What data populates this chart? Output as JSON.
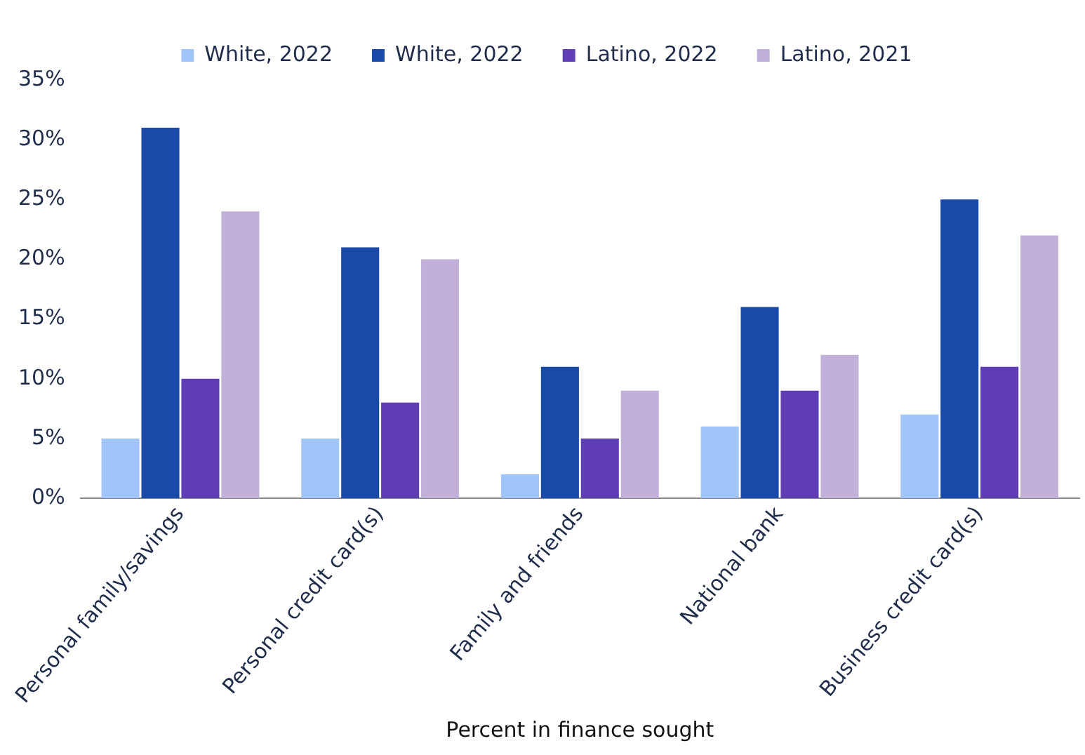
{
  "chart_data": {
    "type": "bar",
    "xlabel": "Percent in finance sought",
    "categories": [
      "Personal family/savings",
      "Personal credit card(s)",
      "Family and friends",
      "National bank",
      "Business credit card(s)"
    ],
    "series": [
      {
        "name": "White, 2022",
        "color": "#a1c4f9",
        "values": [
          5,
          5,
          2,
          6,
          7
        ]
      },
      {
        "name": "White, 2022",
        "color": "#1a4aa8",
        "values": [
          31,
          21,
          11,
          16,
          25
        ]
      },
      {
        "name": "Latino, 2022",
        "color": "#5f3db5",
        "values": [
          10,
          8,
          5,
          9,
          11
        ]
      },
      {
        "name": "Latino, 2021",
        "color": "#c1b1d8",
        "values": [
          24,
          20,
          9,
          12,
          22
        ]
      }
    ],
    "ylim": [
      0,
      35
    ],
    "yticks": [
      {
        "value": 0,
        "label": "0%"
      },
      {
        "value": 5,
        "label": "5%"
      },
      {
        "value": 10,
        "label": "10%"
      },
      {
        "value": 15,
        "label": "15%"
      },
      {
        "value": 20,
        "label": "20%"
      },
      {
        "value": 25,
        "label": "25%"
      },
      {
        "value": 30,
        "label": "30%"
      },
      {
        "value": 35,
        "label": "35%"
      }
    ],
    "grid": false,
    "legend": "top"
  }
}
